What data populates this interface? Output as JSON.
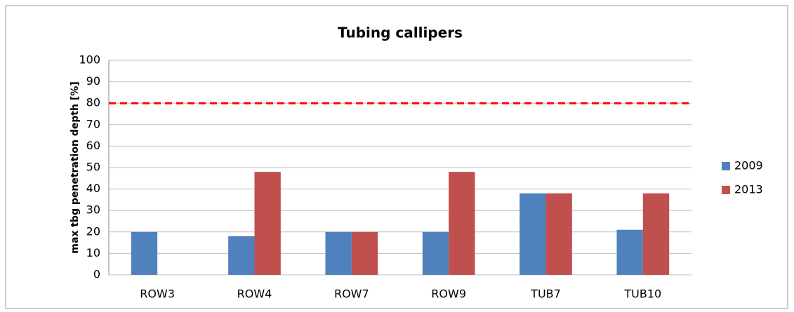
{
  "chart_data": {
    "type": "bar",
    "title": "Tubing callipers",
    "y_label": "max tbg penetration depth [%]",
    "categories": [
      "ROW3",
      "ROW4",
      "ROW7",
      "ROW9",
      "TUB7",
      "TUB10"
    ],
    "series": [
      {
        "name": "2009",
        "color": "#4f81bd",
        "values": [
          20,
          18,
          20,
          20,
          38,
          21
        ]
      },
      {
        "name": "2013",
        "color": "#c0504d",
        "values": [
          null,
          48,
          20,
          48,
          38,
          38
        ]
      }
    ],
    "ylim": [
      0,
      100
    ],
    "yticks": [
      0,
      10,
      20,
      30,
      40,
      50,
      60,
      70,
      80,
      90,
      100
    ],
    "grid": true,
    "reference_line": {
      "value": 80,
      "color": "#ff0000"
    },
    "legend": "right"
  }
}
